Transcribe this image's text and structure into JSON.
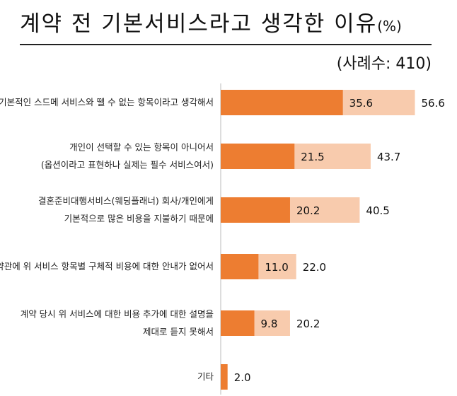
{
  "title": "계약 전 기본서비스라고 생각한 이유",
  "title_unit": "(%)",
  "sample_note": "(사례수: 410)",
  "colors": {
    "primary": "#ED7D31",
    "secondary": "#F8CBAD",
    "axis": "#BBBBBB"
  },
  "chart_data": {
    "type": "bar",
    "orientation": "horizontal",
    "title": "계약 전 기본서비스라고 생각한 이유",
    "categories": [
      [
        "기본적인 스드메 서비스와 뗄 수 없는 항목이라고 생각해서"
      ],
      [
        "개인이 선택할 수 있는 항목이 아니어서",
        "(옵션이라고 표현하나 실제는 필수 서비스여서)"
      ],
      [
        "결혼준비대행서비스(웨딩플래너) 회사/개인에게",
        "기본적으로 많은 비용을 지불하기 때문에"
      ],
      [
        "약관에 위 서비스 항목별 구체적 비용에 대한 안내가 없어서"
      ],
      [
        "계약 당시 위 서비스에 대한 비용 추가에 대한 설명을",
        "제대로 듣지 못해서"
      ],
      [
        "기타"
      ]
    ],
    "series": [
      {
        "values": [
          35.6,
          21.5,
          20.2,
          11.0,
          9.8,
          2.0
        ],
        "labels": [
          "35.6",
          "21.5",
          "20.2",
          "11.0",
          "9.8",
          "2.0"
        ]
      },
      {
        "values": [
          56.6,
          43.7,
          40.5,
          22.0,
          20.2,
          null
        ],
        "labels": [
          "56.6",
          "43.7",
          "40.5",
          "22.0",
          "20.2",
          ""
        ]
      }
    ],
    "overlapping_bars": true,
    "legend": "none",
    "grid": false
  }
}
